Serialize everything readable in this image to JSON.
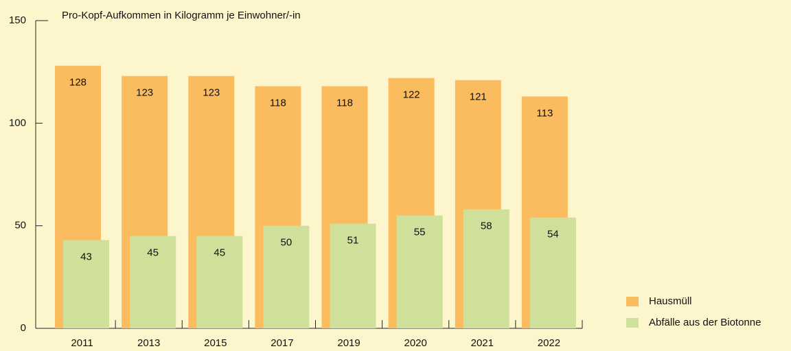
{
  "chart_data": {
    "type": "bar",
    "y_axis_label": "Pro-Kopf-Aufkommen in Kilogramm je Einwohner/-in",
    "categories": [
      "2011",
      "2013",
      "2015",
      "2017",
      "2019",
      "2020",
      "2021",
      "2022"
    ],
    "series": [
      {
        "name": "Hausmüll",
        "color": "#fbbb5f",
        "values": [
          128,
          123,
          123,
          118,
          118,
          122,
          121,
          113
        ]
      },
      {
        "name": "Abfälle aus der Biotonne",
        "color": "#cfe09a",
        "values": [
          43,
          45,
          45,
          50,
          51,
          55,
          58,
          54
        ]
      }
    ],
    "ylim": [
      0,
      150
    ],
    "yticks": [
      0,
      50,
      100,
      150
    ],
    "legend": "bottom-right",
    "value_labels_shown": true
  }
}
